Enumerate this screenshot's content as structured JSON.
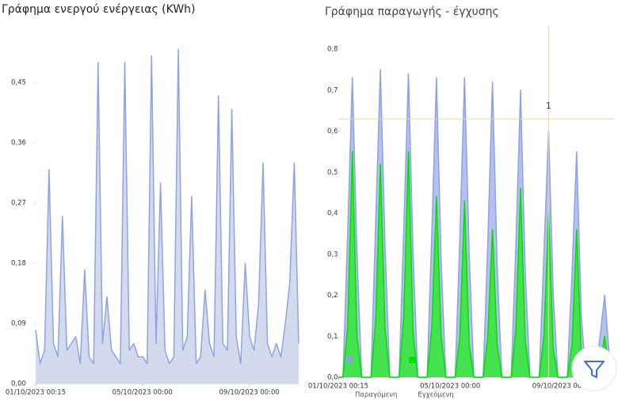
{
  "chart_data": [
    {
      "type": "area",
      "title": "Γράφημα ενεργού ενέργειας (KWh)",
      "x": [
        "2023-10-01T00:15",
        "2023-10-01T04:15",
        "2023-10-01T08:15",
        "2023-10-01T12:15",
        "2023-10-01T16:15",
        "2023-10-01T20:15",
        "2023-10-02T00:15",
        "2023-10-02T04:15",
        "2023-10-02T08:15",
        "2023-10-02T12:15",
        "2023-10-02T16:15",
        "2023-10-02T20:15",
        "2023-10-03T00:15",
        "2023-10-03T04:15",
        "2023-10-03T08:15",
        "2023-10-03T12:15",
        "2023-10-03T16:15",
        "2023-10-03T20:15",
        "2023-10-04T00:15",
        "2023-10-04T04:15",
        "2023-10-04T08:15",
        "2023-10-04T12:15",
        "2023-10-04T16:15",
        "2023-10-04T20:15",
        "2023-10-05T00:15",
        "2023-10-05T04:15",
        "2023-10-05T08:15",
        "2023-10-05T12:15",
        "2023-10-05T16:15",
        "2023-10-05T20:15",
        "2023-10-06T00:15",
        "2023-10-06T04:15",
        "2023-10-06T08:15",
        "2023-10-06T12:15",
        "2023-10-06T16:15",
        "2023-10-06T20:15",
        "2023-10-07T00:15",
        "2023-10-07T04:15",
        "2023-10-07T08:15",
        "2023-10-07T12:15",
        "2023-10-07T16:15",
        "2023-10-07T20:15",
        "2023-10-08T00:15",
        "2023-10-08T04:15",
        "2023-10-08T08:15",
        "2023-10-08T12:15",
        "2023-10-08T16:15",
        "2023-10-08T20:15",
        "2023-10-09T00:15",
        "2023-10-09T04:15",
        "2023-10-09T08:15",
        "2023-10-09T12:15",
        "2023-10-09T16:15",
        "2023-10-09T20:15",
        "2023-10-10T00:15",
        "2023-10-10T04:15",
        "2023-10-10T08:15",
        "2023-10-10T12:15",
        "2023-10-10T16:15",
        "2023-10-10T20:15"
      ],
      "series": [
        {
          "color": "#8fa3e3",
          "fill": "#cdd3ea",
          "values": [
            0.08,
            0.03,
            0.05,
            0.32,
            0.06,
            0.04,
            0.25,
            0.05,
            0.06,
            0.07,
            0.03,
            0.17,
            0.04,
            0.03,
            0.48,
            0.06,
            0.13,
            0.05,
            0.04,
            0.03,
            0.48,
            0.05,
            0.06,
            0.04,
            0.04,
            0.03,
            0.49,
            0.06,
            0.3,
            0.05,
            0.03,
            0.04,
            0.5,
            0.05,
            0.07,
            0.28,
            0.03,
            0.04,
            0.14,
            0.06,
            0.04,
            0.43,
            0.06,
            0.05,
            0.41,
            0.07,
            0.03,
            0.18,
            0.07,
            0.05,
            0.12,
            0.33,
            0.06,
            0.04,
            0.06,
            0.04,
            0.09,
            0.15,
            0.33,
            0.06
          ]
        }
      ],
      "xlim": [
        "2023-10-01T00:15",
        "2023-10-10T20:15"
      ],
      "xticks": [
        {
          "value": "2023-10-01T00:15",
          "label": "01/10/2023 00:15"
        },
        {
          "value": "2023-10-05T00:00",
          "label": "05/10/2023 00:00"
        },
        {
          "value": "2023-10-09T00:00",
          "label": "09/10/2023 00:00"
        }
      ],
      "ylim": [
        0,
        0.5
      ],
      "yticks": [
        {
          "value": 0,
          "label": "0,00"
        },
        {
          "value": 0.09,
          "label": "0,09"
        },
        {
          "value": 0.18,
          "label": "0,18"
        },
        {
          "value": 0.27,
          "label": "0,27"
        },
        {
          "value": 0.36,
          "label": "0,36"
        },
        {
          "value": 0.45,
          "label": "0,45"
        }
      ]
    },
    {
      "type": "area",
      "title": "Γράφημα παραγωγής - έγχυσης",
      "x": [
        "2023-10-01T00:15",
        "2023-10-01T04:15",
        "2023-10-01T08:15",
        "2023-10-01T12:15",
        "2023-10-01T16:15",
        "2023-10-01T20:15",
        "2023-10-02T00:15",
        "2023-10-02T04:15",
        "2023-10-02T08:15",
        "2023-10-02T12:15",
        "2023-10-02T16:15",
        "2023-10-02T20:15",
        "2023-10-03T00:15",
        "2023-10-03T04:15",
        "2023-10-03T08:15",
        "2023-10-03T12:15",
        "2023-10-03T16:15",
        "2023-10-03T20:15",
        "2023-10-04T00:15",
        "2023-10-04T04:15",
        "2023-10-04T08:15",
        "2023-10-04T12:15",
        "2023-10-04T16:15",
        "2023-10-04T20:15",
        "2023-10-05T00:15",
        "2023-10-05T04:15",
        "2023-10-05T08:15",
        "2023-10-05T12:15",
        "2023-10-05T16:15",
        "2023-10-05T20:15",
        "2023-10-06T00:15",
        "2023-10-06T04:15",
        "2023-10-06T08:15",
        "2023-10-06T12:15",
        "2023-10-06T16:15",
        "2023-10-06T20:15",
        "2023-10-07T00:15",
        "2023-10-07T04:15",
        "2023-10-07T08:15",
        "2023-10-07T12:15",
        "2023-10-07T16:15",
        "2023-10-07T20:15",
        "2023-10-08T00:15",
        "2023-10-08T04:15",
        "2023-10-08T08:15",
        "2023-10-08T12:15",
        "2023-10-08T16:15",
        "2023-10-08T20:15",
        "2023-10-09T00:15",
        "2023-10-09T04:15",
        "2023-10-09T08:15",
        "2023-10-09T12:15",
        "2023-10-09T16:15",
        "2023-10-09T20:15",
        "2023-10-10T00:15",
        "2023-10-10T04:15",
        "2023-10-10T08:15",
        "2023-10-10T12:15",
        "2023-10-10T16:15",
        "2023-10-10T20:15"
      ],
      "series": [
        {
          "name": "Παραγόμενη",
          "color": "#8fa0e6",
          "fill": "#a7b5ea",
          "values": [
            0,
            0,
            0.35,
            0.73,
            0.3,
            0,
            0,
            0,
            0.38,
            0.75,
            0.32,
            0,
            0,
            0,
            0.36,
            0.74,
            0.3,
            0,
            0,
            0,
            0.35,
            0.73,
            0.28,
            0,
            0,
            0,
            0.34,
            0.73,
            0.3,
            0,
            0,
            0,
            0.33,
            0.72,
            0.27,
            0,
            0,
            0,
            0.32,
            0.7,
            0.26,
            0,
            0,
            0,
            0.3,
            0.6,
            0.2,
            0,
            0,
            0,
            0.25,
            0.55,
            0.15,
            0,
            0,
            0,
            0.1,
            0.2,
            0.05,
            0
          ]
        },
        {
          "name": "Εγχεόμενη",
          "color": "#00e000",
          "fill": "#33e633",
          "values": [
            0,
            0,
            0.12,
            0.55,
            0.1,
            0,
            0,
            0,
            0.14,
            0.52,
            0.12,
            0,
            0,
            0,
            0.15,
            0.55,
            0.11,
            0,
            0,
            0,
            0.12,
            0.44,
            0.1,
            0,
            0,
            0,
            0.1,
            0.43,
            0.08,
            0,
            0,
            0,
            0.1,
            0.36,
            0.08,
            0,
            0,
            0,
            0.12,
            0.46,
            0.09,
            0,
            0,
            0,
            0.1,
            0.4,
            0.07,
            0,
            0,
            0,
            0.08,
            0.36,
            0.05,
            0,
            0,
            0,
            0.03,
            0.1,
            0.01,
            0
          ]
        }
      ],
      "xlim": [
        "2023-10-01T00:15",
        "2023-10-10T20:15"
      ],
      "xticks": [
        {
          "value": "2023-10-01T00:15",
          "label": "01/10/2023 00:15"
        },
        {
          "value": "2023-10-05T00:00",
          "label": "05/10/2023 00:00"
        },
        {
          "value": "2023-10-09T00:00",
          "label": "09/10/2023 00:00"
        }
      ],
      "ylim": [
        0,
        0.8
      ],
      "yticks": [
        {
          "value": 0,
          "label": "0,0"
        },
        {
          "value": 0.1,
          "label": "0,1"
        },
        {
          "value": 0.2,
          "label": "0,2"
        },
        {
          "value": 0.3,
          "label": "0,3"
        },
        {
          "value": 0.4,
          "label": "0,4"
        },
        {
          "value": 0.5,
          "label": "0,5"
        },
        {
          "value": 0.6,
          "label": "0,6"
        },
        {
          "value": 0.7,
          "label": "0,7"
        },
        {
          "value": 0.8,
          "label": "0,8"
        }
      ],
      "legend": "bottom",
      "annotation": {
        "text": "1",
        "x": "2023-10-08T12:15",
        "y": 0.63
      }
    }
  ]
}
